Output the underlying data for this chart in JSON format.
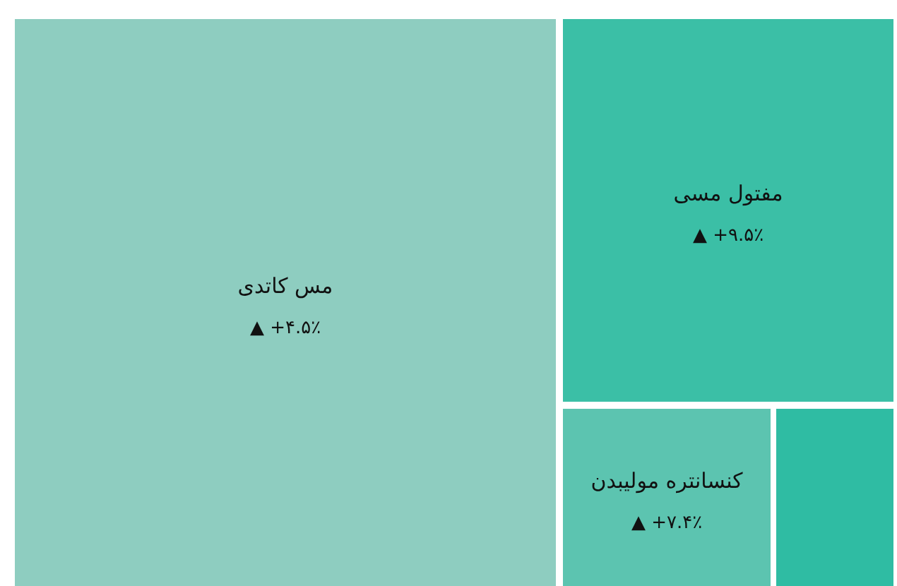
{
  "chart_data": {
    "type": "other",
    "categories": [
      "مس کاتدی",
      "مفتول مسی",
      "کنسانتره مولیبدن",
      null
    ],
    "values": [
      4.5,
      9.5,
      7.4,
      null
    ],
    "value_labels": [
      "▲ +۴.۵٪",
      "▲ +۹.۵٪",
      "▲ +۷.۴٪",
      null
    ],
    "colors": [
      "#8ecdc0",
      "#3bbfa6",
      "#5cc4b0",
      "#2fbca3"
    ]
  }
}
